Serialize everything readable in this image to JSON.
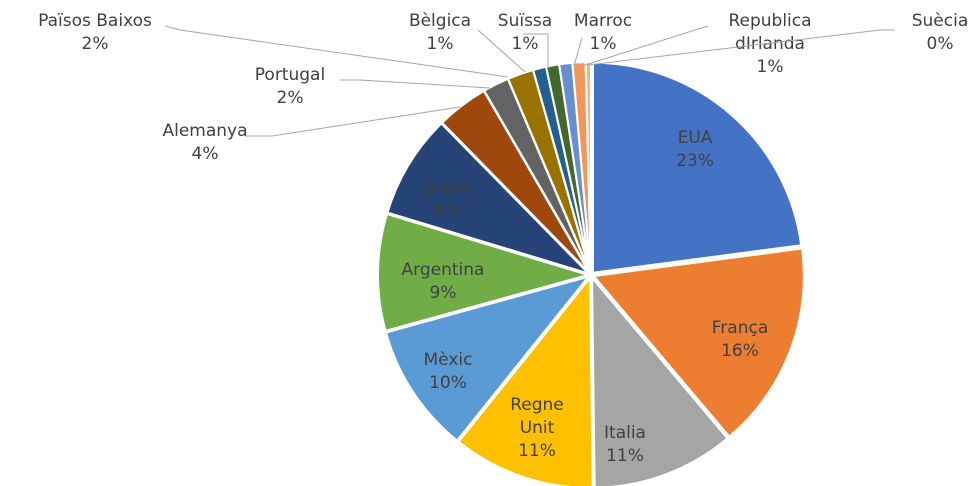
{
  "chart_data": {
    "type": "pie",
    "categories": [
      "EUA",
      "França",
      "Italia",
      "Regne Unit",
      "Mèxic",
      "Argentina",
      "Brasil",
      "Alemanya",
      "Portugal",
      "Països Baixos",
      "Bèlgica",
      "Suïssa",
      "Marroc",
      "Republica dIrlanda",
      "Suècia"
    ],
    "values": [
      23,
      16,
      11,
      11,
      10,
      9,
      8,
      4,
      2,
      2,
      1,
      1,
      1,
      1,
      0.4
    ],
    "value_labels": [
      "23%",
      "16%",
      "11%",
      "11%",
      "10%",
      "9%",
      "8%",
      "4%",
      "2%",
      "2%",
      "1%",
      "1%",
      "1%",
      "1%",
      "0%"
    ],
    "colors": [
      "#4472c4",
      "#ed7d31",
      "#a5a5a5",
      "#ffc000",
      "#5b9bd5",
      "#70ad47",
      "#264478",
      "#9e480e",
      "#636363",
      "#997300",
      "#255e91",
      "#43682b",
      "#698ed0",
      "#f1975a",
      "#f4b183"
    ]
  }
}
